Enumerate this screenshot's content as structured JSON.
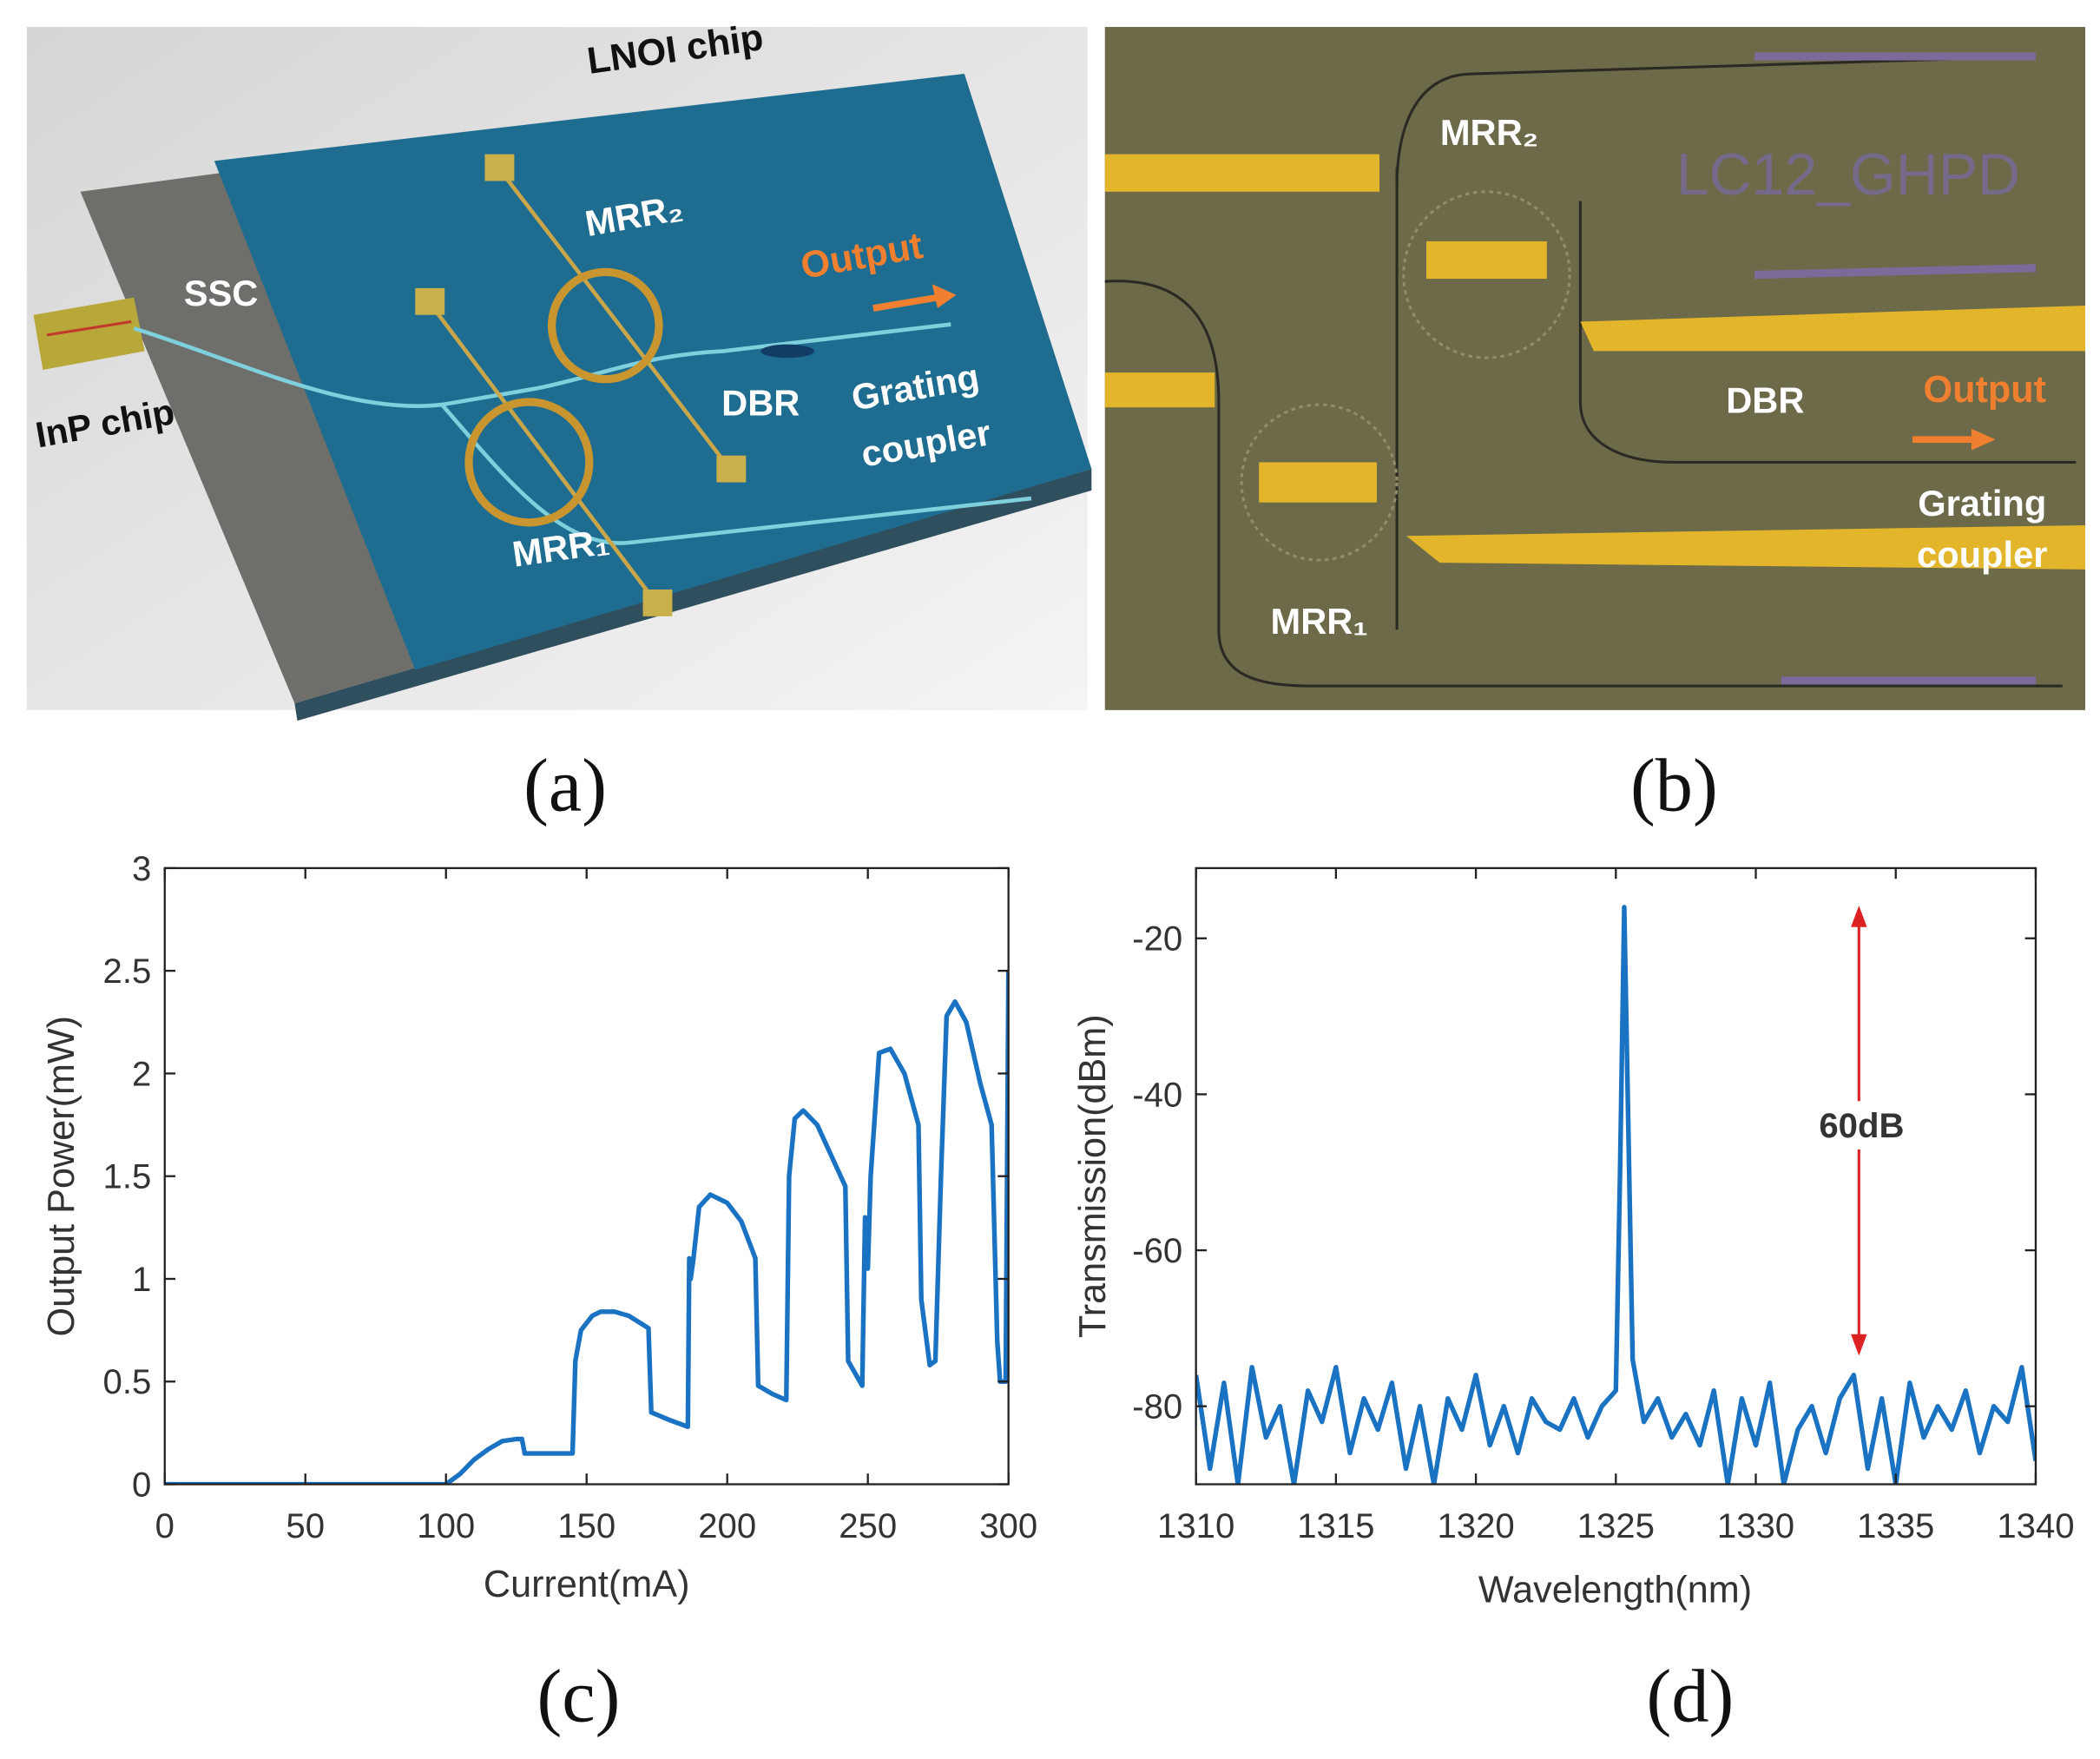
{
  "panel_a": {
    "label": "(a)",
    "chip_title": "LNOI chip",
    "ssc": "SSC",
    "inp": "InP chip",
    "mrr2": "MRR₂",
    "mrr1": "MRR₁",
    "dbr": "DBR",
    "output": "Output",
    "grating": [
      "Grating",
      "coupler"
    ]
  },
  "panel_b": {
    "label": "(b)",
    "marking": "LC12_GHPD",
    "mrr2": "MRR₂",
    "mrr1": "MRR₁",
    "dbr": "DBR",
    "output": "Output",
    "grating": [
      "Grating",
      "coupler"
    ]
  },
  "chart_data": [
    {
      "type": "line",
      "panel_label": "(c)",
      "x_label": "Current(mA)",
      "y_label": "Output Power(mW)",
      "color": "#1a73c2",
      "xlim": [
        0,
        300
      ],
      "ylim": [
        0,
        3
      ],
      "xticks": [
        0,
        50,
        100,
        150,
        200,
        250,
        300
      ],
      "yticks": [
        0,
        0.5,
        1,
        1.5,
        2,
        2.5,
        3
      ],
      "x": [
        0,
        50,
        100,
        105,
        110,
        115,
        120,
        125,
        127,
        128,
        145,
        146,
        148,
        152,
        155,
        160,
        165,
        172,
        173,
        180,
        186,
        186.5,
        187,
        188,
        190,
        194,
        200,
        205,
        210,
        211,
        216,
        221,
        222,
        224,
        227,
        232,
        237,
        242,
        243,
        248,
        249,
        250,
        251,
        254,
        258,
        263,
        268,
        269,
        272,
        274,
        276,
        278,
        281,
        285,
        290,
        294,
        296,
        297,
        299,
        300
      ],
      "values": [
        0,
        0,
        0,
        0.05,
        0.12,
        0.17,
        0.21,
        0.22,
        0.22,
        0.15,
        0.15,
        0.6,
        0.75,
        0.82,
        0.84,
        0.84,
        0.82,
        0.76,
        0.35,
        0.31,
        0.28,
        1.1,
        1.0,
        1.1,
        1.35,
        1.41,
        1.37,
        1.28,
        1.1,
        0.48,
        0.44,
        0.41,
        1.5,
        1.78,
        1.82,
        1.75,
        1.6,
        1.45,
        0.6,
        0.48,
        1.3,
        1.05,
        1.5,
        2.1,
        2.12,
        2.0,
        1.75,
        0.9,
        0.58,
        0.6,
        1.5,
        2.28,
        2.35,
        2.25,
        1.95,
        1.75,
        0.7,
        0.5,
        0.5,
        2.5
      ]
    },
    {
      "type": "line",
      "panel_label": "(d)",
      "x_label": "Wavelength(nm)",
      "y_label": "Transmission(dBm)",
      "color": "#1a73c2",
      "annotation": "60dB",
      "xlim": [
        1310,
        1340
      ],
      "ylim": [
        -90,
        -11
      ],
      "xticks": [
        1310,
        1315,
        1320,
        1325,
        1330,
        1335,
        1340
      ],
      "yticks": [
        -80,
        -60,
        -40,
        -20
      ],
      "x": [
        1310,
        1310.5,
        1311,
        1311.5,
        1312,
        1312.5,
        1313,
        1313.5,
        1314,
        1314.5,
        1315,
        1315.5,
        1316,
        1316.5,
        1317,
        1317.5,
        1318,
        1318.5,
        1319,
        1319.5,
        1320,
        1320.5,
        1321,
        1321.5,
        1322,
        1322.5,
        1323,
        1323.5,
        1324,
        1324.5,
        1325,
        1325.15,
        1325.3,
        1325.45,
        1325.6,
        1326,
        1326.5,
        1327,
        1327.5,
        1328,
        1328.5,
        1329,
        1329.5,
        1330,
        1330.5,
        1331,
        1331.5,
        1332,
        1332.5,
        1333,
        1333.5,
        1334,
        1334.5,
        1335,
        1335.5,
        1336,
        1336.5,
        1337,
        1337.5,
        1338,
        1338.5,
        1339,
        1339.5,
        1340
      ],
      "values": [
        -76,
        -88,
        -77,
        -90,
        -75,
        -84,
        -80,
        -90,
        -78,
        -82,
        -75,
        -86,
        -79,
        -83,
        -77,
        -88,
        -80,
        -90,
        -79,
        -83,
        -76,
        -85,
        -80,
        -86,
        -79,
        -82,
        -83,
        -79,
        -84,
        -80,
        -78,
        -50,
        -16,
        -45,
        -74,
        -82,
        -79,
        -84,
        -81,
        -85,
        -78,
        -90,
        -79,
        -85,
        -77,
        -90,
        -83,
        -80,
        -86,
        -79,
        -76,
        -88,
        -79,
        -90,
        -77,
        -84,
        -80,
        -83,
        -78,
        -86,
        -80,
        -82,
        -75,
        -87
      ]
    }
  ]
}
